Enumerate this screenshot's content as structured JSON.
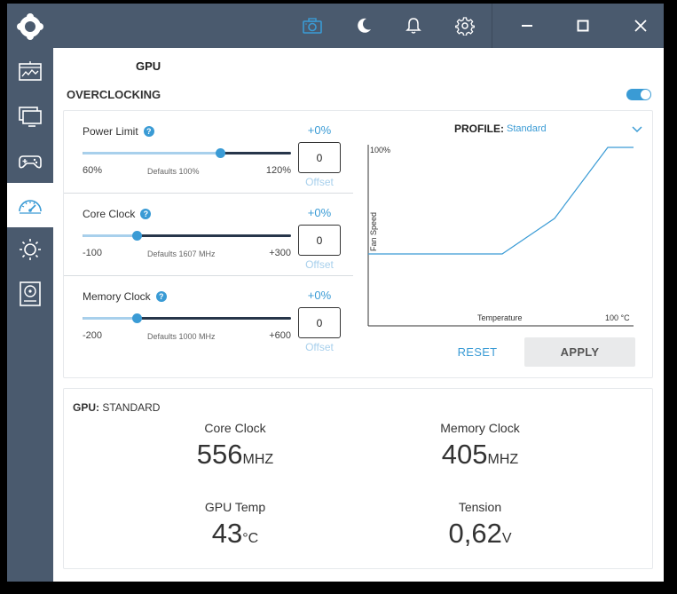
{
  "header": {
    "page_title": "GPU"
  },
  "overclocking": {
    "title": "OVERCLOCKING",
    "enabled": true,
    "sliders": [
      {
        "label": "Power Limit",
        "percent": "+0%",
        "min": "60%",
        "defaults": "Defaults  100%",
        "max": "120%",
        "value": "0",
        "offset_label": "Offset",
        "position": 0.66
      },
      {
        "label": "Core Clock",
        "percent": "+0%",
        "min": "-100",
        "defaults": "Defaults  1607 MHz",
        "max": "+300",
        "value": "0",
        "offset_label": "Offset",
        "position": 0.26
      },
      {
        "label": "Memory Clock",
        "percent": "+0%",
        "min": "-200",
        "defaults": "Defaults  1000 MHz",
        "max": "+600",
        "value": "0",
        "offset_label": "Offset",
        "position": 0.26
      }
    ],
    "profile": {
      "label": "PROFILE:",
      "value": "Standard"
    },
    "fan_chart": {
      "ylabel": "Fan Speed",
      "xlabel": "Temperature",
      "y_max_label": "100%",
      "x_max_label": "100 °C"
    },
    "reset_label": "RESET",
    "apply_label": "APPLY"
  },
  "stats": {
    "title_prefix": "GPU:",
    "title_value": "STANDARD",
    "core_clock": {
      "label": "Core Clock",
      "value": "556",
      "unit": "MHZ"
    },
    "memory_clock": {
      "label": "Memory Clock",
      "value": "405",
      "unit": "MHZ"
    },
    "gpu_temp": {
      "label": "GPU Temp",
      "value": "43",
      "unit": "°C"
    },
    "tension": {
      "label": "Tension",
      "value": "0,62",
      "unit": "V"
    }
  },
  "colors": {
    "accent": "#3a9bd5",
    "sidebar": "#4a5a6e",
    "track_dark": "#27364a"
  }
}
